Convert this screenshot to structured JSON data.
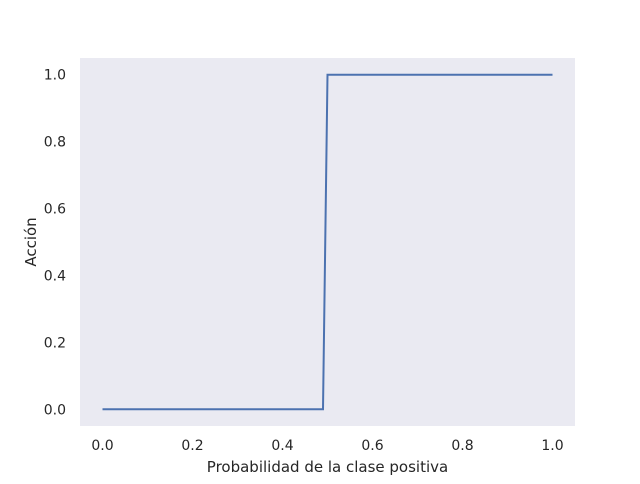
{
  "chart_data": {
    "type": "line",
    "title": "",
    "xlabel": "Probabilidad de la clase positiva",
    "ylabel": "Acción",
    "xlim": [
      -0.05,
      1.05
    ],
    "ylim": [
      -0.05,
      1.05
    ],
    "xticks": [
      0.0,
      0.2,
      0.4,
      0.6,
      0.8,
      1.0
    ],
    "yticks": [
      0.0,
      0.2,
      0.4,
      0.6,
      0.8,
      1.0
    ],
    "xtick_labels": [
      "0.0",
      "0.2",
      "0.4",
      "0.6",
      "0.8",
      "1.0"
    ],
    "ytick_labels": [
      "0.0",
      "0.2",
      "0.4",
      "0.6",
      "0.8",
      "1.0"
    ],
    "grid": false,
    "series": [
      {
        "color": "#4c72b0",
        "x": [
          0.0,
          0.49,
          0.5,
          1.0
        ],
        "y": [
          0.0,
          0.0,
          1.0,
          1.0
        ]
      }
    ]
  },
  "colors": {
    "plot_background": "#eaeaf2",
    "line": "#4c72b0",
    "text": "#262626"
  }
}
